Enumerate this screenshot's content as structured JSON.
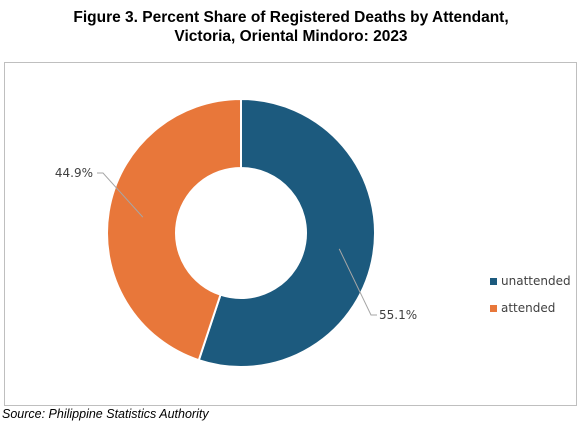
{
  "title_line1": "Figure 3. Percent Share of Registered Deaths by Attendant,",
  "title_line2": "Victoria, Oriental Mindoro: 2023",
  "source": "Source: Philippine Statistics Authority",
  "chart_data": {
    "type": "pie",
    "variant": "donut",
    "title": "Figure 3. Percent Share of Registered Deaths by Attendant, Victoria, Oriental Mindoro: 2023",
    "categories": [
      "unattended",
      "attended"
    ],
    "values": [
      55.1,
      44.9
    ],
    "labels": [
      "55.1%",
      "44.9%"
    ],
    "colors": [
      "#1c5a7e",
      "#e8773a"
    ],
    "legend_position": "right",
    "start": "12 o'clock, clockwise"
  },
  "legend": [
    {
      "label": "unattended",
      "color": "#1c5a7e"
    },
    {
      "label": "attended",
      "color": "#e8773a"
    }
  ]
}
